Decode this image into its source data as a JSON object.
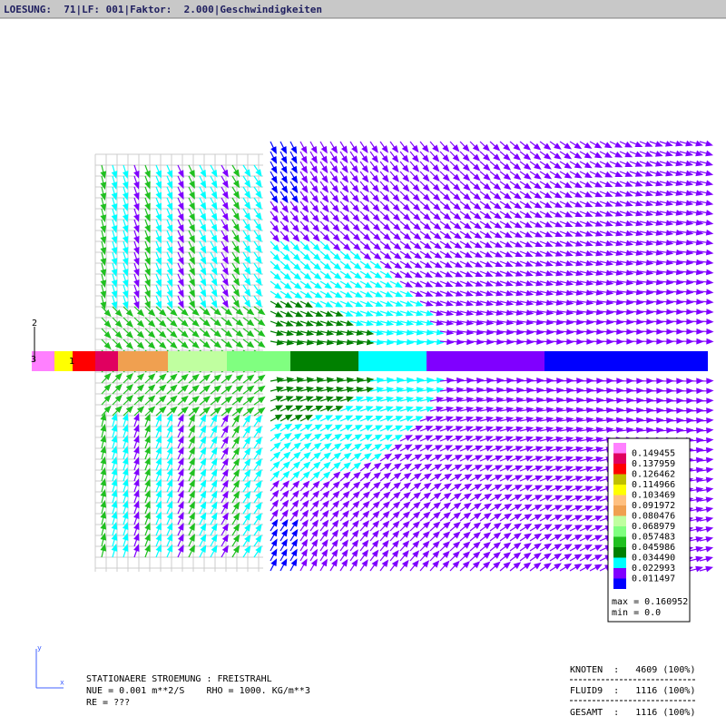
{
  "header": {
    "title": "LOESUNG:  71|LF: 001|Faktor:  2.000|Geschwindigkeiten"
  },
  "axis_labels": {
    "y": "2",
    "z": "3",
    "x": "1"
  },
  "triad": {
    "y": "y",
    "x": "x"
  },
  "legend": {
    "colors": [
      "#ff80ff",
      "#e00060",
      "#ff0000",
      "#c0c000",
      "#ffff00",
      "#ffc080",
      "#f0a050",
      "#c0ffa0",
      "#80ff80",
      "#20c020",
      "#008000",
      "#00ffff",
      "#8000ff",
      "#0000ff"
    ],
    "levels": [
      "0.149455",
      "0.137959",
      "0.126462",
      "0.114966",
      "0.103469",
      "0.091972",
      "0.080476",
      "0.068979",
      "0.057483",
      "0.045986",
      "0.034490",
      "0.022993",
      "0.011497"
    ],
    "max": "max = 0.160952",
    "min": "min = 0.0"
  },
  "info": {
    "lines": [
      "STATIONAERE STROEMUNG : FREISTRAHL",
      "NUE = 0.001 m**2/S    RHO = 1000. KG/m**3",
      "RE = ???"
    ]
  },
  "stats": {
    "rows": [
      "KNOTEN  :   4609 (100%)",
      "FLUID9  :   1116 (100%)",
      "GESAMT  :   1116 (100%)"
    ]
  }
}
